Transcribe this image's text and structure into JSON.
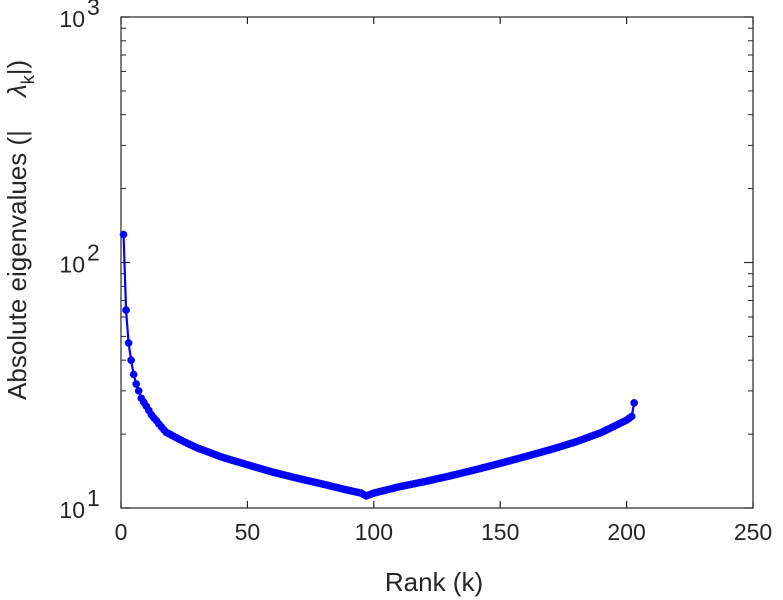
{
  "chart_data": {
    "type": "line",
    "title": "",
    "xlabel": "Rank (k)",
    "ylabel_left": "Absolute eigenvalues (|",
    "ylabel_right_symbol": "λ",
    "ylabel_right_sub": "k",
    "ylabel_right_tail": "|)",
    "x_scale": "linear",
    "y_scale": "log",
    "xlim": [
      0,
      250
    ],
    "ylim": [
      10,
      1000
    ],
    "x_ticks": [
      0,
      50,
      100,
      150,
      200,
      250
    ],
    "x_tick_labels": [
      "0",
      "50",
      "100",
      "150",
      "200",
      "250"
    ],
    "y_ticks": [
      10,
      100,
      1000
    ],
    "y_tick_base": "10",
    "y_tick_exponents": [
      "1",
      "2",
      "3"
    ],
    "grid": false,
    "legend": "none",
    "series_color": "#0000ff",
    "series": [
      {
        "x": [
          1,
          2,
          3,
          4,
          5,
          6,
          7,
          8,
          9,
          10,
          11,
          12,
          13,
          14,
          15,
          16,
          17,
          18,
          20,
          25,
          30,
          40,
          50,
          60,
          70,
          80,
          90,
          95,
          97,
          100,
          110,
          120,
          130,
          140,
          150,
          160,
          170,
          180,
          190,
          200,
          202,
          203
        ],
        "y": [
          130,
          64,
          47,
          40,
          35,
          32,
          30,
          28,
          27,
          26,
          25,
          24,
          23.3,
          22.7,
          22,
          21.4,
          20.8,
          20.3,
          19.8,
          18.6,
          17.6,
          16.1,
          15.0,
          14.0,
          13.2,
          12.5,
          11.8,
          11.5,
          11.2,
          11.5,
          12.2,
          12.8,
          13.5,
          14.3,
          15.2,
          16.2,
          17.3,
          18.6,
          20.3,
          22.8,
          23.6,
          26.8
        ]
      }
    ]
  }
}
